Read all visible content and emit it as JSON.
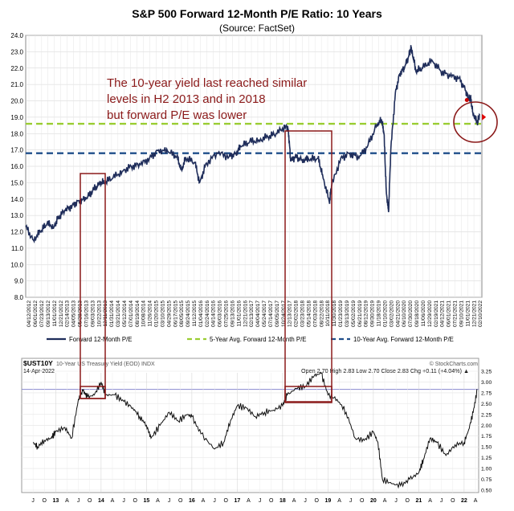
{
  "chart_data": [
    {
      "type": "line",
      "title": "S&P 500 Forward 12-Month P/E Ratio: 10 Years",
      "subtitle": "(Source: FactSet)",
      "annotation": "The 10-year yield last reached similar levels in H2 2013 and in 2018 but forward P/E was lower",
      "annotation_lines": [
        "The 10-year yield last reached similar",
        "levels in H2 2013 and in 2018",
        "but forward P/E was lower"
      ],
      "ylim": [
        8.0,
        24.0
      ],
      "yticks": [
        8.0,
        9.0,
        10.0,
        11.0,
        12.0,
        13.0,
        14.0,
        15.0,
        16.0,
        17.0,
        18.0,
        19.0,
        20.0,
        21.0,
        22.0,
        23.0,
        24.0
      ],
      "xticks": [
        "04/12/2012",
        "06/01/2012",
        "07/23/2012",
        "09/13/2012",
        "11/01/2012",
        "12/21/2012",
        "02/14/2013",
        "04/05/2013",
        "05/28/2013",
        "07/16/2013",
        "09/03/2013",
        "10/22/2013",
        "12/11/2013",
        "01/31/2014",
        "03/21/2014",
        "05/12/2014",
        "07/01/2014",
        "08/19/2014",
        "10/08/2014",
        "11/26/2014",
        "01/20/2015",
        "03/10/2015",
        "04/29/2015",
        "06/17/2015",
        "08/05/2015",
        "09/24/2015",
        "11/12/2015",
        "01/04/2016",
        "02/24/2016",
        "04/14/2016",
        "06/03/2016",
        "07/25/2016",
        "09/13/2016",
        "11/01/2016",
        "12/21/2016",
        "02/13/2017",
        "04/04/2017",
        "05/24/2017",
        "07/14/2017",
        "09/05/2017",
        "10/24/2017",
        "12/13/2017",
        "02/02/2018",
        "03/23/2018",
        "05/14/2018",
        "07/03/2018",
        "08/22/2018",
        "10/11/2018",
        "11/30/2018",
        "01/23/2019",
        "03/13/2019",
        "05/02/2019",
        "06/21/2019",
        "08/12/2019",
        "09/30/2019",
        "11/18/2019",
        "01/10/2020",
        "03/02/2020",
        "04/21/2020",
        "06/10/2020",
        "07/30/2020",
        "09/18/2020",
        "11/06/2020",
        "12/29/2020",
        "02/19/2021",
        "04/12/2021",
        "06/01/2021",
        "07/21/2021",
        "09/10/2021",
        "11/01/2021",
        "12/21/2021",
        "02/10/2022"
      ],
      "series": [
        {
          "name": "Forward 12-Month P/E",
          "color": "#1f2d5a",
          "x": [
            2012.28,
            2012.45,
            2012.6,
            2012.75,
            2012.9,
            2013.0,
            2013.15,
            2013.3,
            2013.45,
            2013.6,
            2013.75,
            2013.9,
            2014.0,
            2014.2,
            2014.4,
            2014.6,
            2014.8,
            2015.0,
            2015.2,
            2015.4,
            2015.6,
            2015.7,
            2015.8,
            2016.0,
            2016.1,
            2016.25,
            2016.5,
            2016.75,
            2016.9,
            2017.0,
            2017.2,
            2017.4,
            2017.6,
            2017.8,
            2018.0,
            2018.05,
            2018.1,
            2018.2,
            2018.35,
            2018.5,
            2018.7,
            2018.8,
            2018.95,
            2019.0,
            2019.2,
            2019.4,
            2019.6,
            2019.8,
            2020.0,
            2020.1,
            2020.15,
            2020.2,
            2020.25,
            2020.3,
            2020.4,
            2020.5,
            2020.6,
            2020.7,
            2020.75,
            2020.85,
            2021.0,
            2021.2,
            2021.4,
            2021.6,
            2021.8,
            2021.95,
            2022.0,
            2022.05,
            2022.1,
            2022.2,
            2022.25
          ],
          "y": [
            12.3,
            11.5,
            12.0,
            12.5,
            12.3,
            12.9,
            13.3,
            13.6,
            13.9,
            14.0,
            14.5,
            15.0,
            15.0,
            15.3,
            15.7,
            16.0,
            16.1,
            16.5,
            17.0,
            16.9,
            16.6,
            15.8,
            16.5,
            16.2,
            15.0,
            16.2,
            16.8,
            16.6,
            16.8,
            17.2,
            17.5,
            17.6,
            17.8,
            18.0,
            18.5,
            18.2,
            16.3,
            16.6,
            16.4,
            16.4,
            16.5,
            15.5,
            13.8,
            14.8,
            16.5,
            16.8,
            16.5,
            17.3,
            18.6,
            18.8,
            18.0,
            14.5,
            13.2,
            17.0,
            20.5,
            21.7,
            22.0,
            22.8,
            23.3,
            21.8,
            22.0,
            22.5,
            21.8,
            21.5,
            21.4,
            20.6,
            20.1,
            20.2,
            19.3,
            18.6,
            19.2
          ]
        },
        {
          "name": "5-Year Avg. Forward 12-Month P/E",
          "color": "#9acd32",
          "value": 18.6
        },
        {
          "name": "10-Year Avg. Forward 12-Month P/E",
          "color": "#1f4e8a",
          "value": 16.8
        }
      ]
    },
    {
      "type": "line",
      "title": "$UST10Y",
      "subtitle": "10-Year US Treasury Yield (EOD) INDX",
      "date": "14-Apr-2022",
      "stats": "Open 2.70 High 2.83 Low 2.70 Close 2.83 Chg +0.11 (+4.04%) ▲",
      "credit": "© StockCharts.com",
      "ylim": [
        0.5,
        3.25
      ],
      "yticks": [
        "0.50",
        "0.75",
        "1.00",
        "1.25",
        "1.50",
        "1.75",
        "2.00",
        "2.25",
        "2.50",
        "2.75",
        "3.00",
        "3.25"
      ],
      "xticks": [
        "J",
        "O",
        "13",
        "A",
        "J",
        "O",
        "14",
        "A",
        "J",
        "O",
        "15",
        "A",
        "J",
        "O",
        "16",
        "A",
        "J",
        "O",
        "17",
        "A",
        "J",
        "O",
        "18",
        "A",
        "J",
        "O",
        "19",
        "A",
        "J",
        "O",
        "20",
        "A",
        "J",
        "O",
        "21",
        "A",
        "J",
        "O",
        "22",
        "A"
      ],
      "reference_line": 2.83,
      "series": [
        {
          "name": "10-Year US Treasury Yield",
          "x": [
            2012.5,
            2012.6,
            2012.75,
            2012.9,
            2013.0,
            2013.2,
            2013.35,
            2013.5,
            2013.6,
            2013.7,
            2013.85,
            2014.0,
            2014.1,
            2014.3,
            2014.5,
            2014.7,
            2014.85,
            2015.0,
            2015.1,
            2015.3,
            2015.5,
            2015.7,
            2015.9,
            2016.0,
            2016.2,
            2016.5,
            2016.7,
            2016.85,
            2017.0,
            2017.2,
            2017.4,
            2017.6,
            2017.8,
            2018.0,
            2018.1,
            2018.3,
            2018.5,
            2018.7,
            2018.85,
            2019.0,
            2019.2,
            2019.4,
            2019.6,
            2019.8,
            2020.0,
            2020.1,
            2020.2,
            2020.4,
            2020.6,
            2020.8,
            2021.0,
            2021.1,
            2021.25,
            2021.4,
            2021.6,
            2021.8,
            2022.0,
            2022.1,
            2022.2,
            2022.29
          ],
          "y": [
            1.6,
            1.5,
            1.65,
            1.7,
            1.85,
            1.95,
            1.7,
            2.6,
            2.8,
            2.65,
            2.7,
            3.0,
            2.7,
            2.7,
            2.55,
            2.4,
            2.2,
            2.0,
            1.7,
            2.0,
            2.3,
            2.1,
            2.25,
            2.2,
            1.8,
            1.45,
            1.6,
            2.1,
            2.45,
            2.4,
            2.2,
            2.3,
            2.35,
            2.45,
            2.7,
            2.85,
            2.9,
            3.15,
            3.2,
            2.7,
            2.6,
            2.3,
            1.7,
            1.65,
            1.85,
            1.6,
            0.75,
            0.65,
            0.6,
            0.75,
            0.9,
            1.2,
            1.7,
            1.6,
            1.3,
            1.55,
            1.6,
            1.9,
            2.3,
            2.83
          ]
        }
      ]
    }
  ]
}
